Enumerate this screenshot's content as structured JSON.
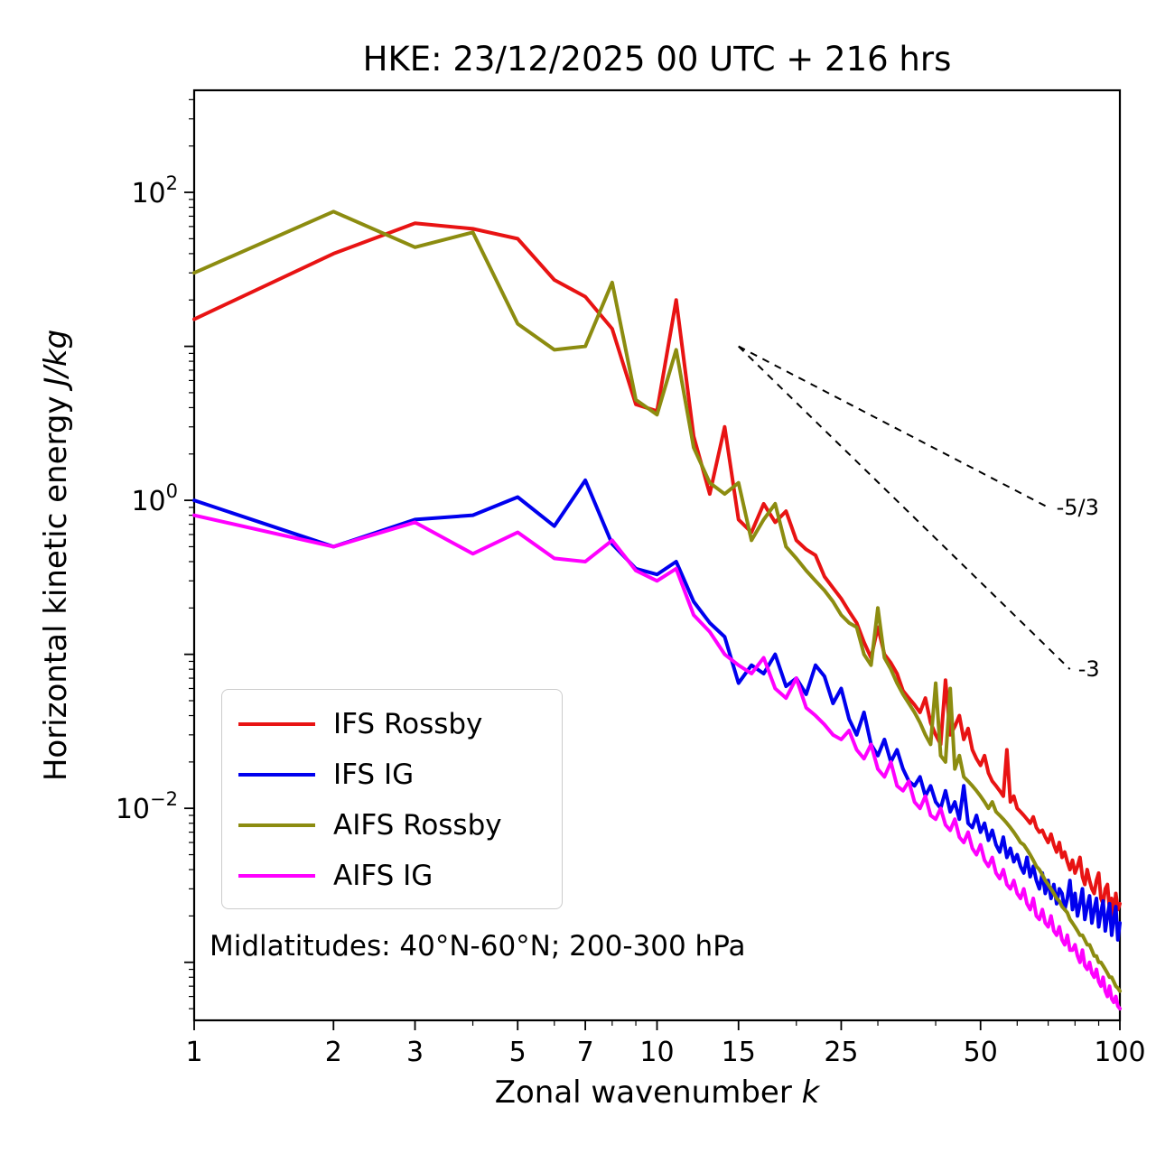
{
  "annotation": "Midlatitudes: 40°N-60°N; 200-300 hPa",
  "chart_data": {
    "type": "line",
    "title": "HKE: 23/12/2025 00 UTC + 216 hrs",
    "xlabel": {
      "text": "Zonal wavenumber",
      "var": "k"
    },
    "ylabel": {
      "text": "Horizontal kinetic energy",
      "unit": "J/kg"
    },
    "x_scale": "log",
    "y_scale": "log",
    "xlim": [
      1,
      100
    ],
    "ylim": [
      0.00042,
      460
    ],
    "grid": false,
    "legend_position": "lower left",
    "xticks": [
      1,
      2,
      3,
      5,
      7,
      10,
      15,
      25,
      50,
      100
    ],
    "xtick_labels": [
      "1",
      "2",
      "3",
      "5",
      "7",
      "10",
      "15",
      "25",
      "50",
      "100"
    ],
    "x_minor_ticks": [
      4,
      6,
      8,
      9,
      20,
      30,
      40,
      60,
      70,
      80,
      90
    ],
    "ytick_exponents_labeled": [
      2,
      0,
      -2
    ],
    "x": [
      1,
      2,
      3,
      4,
      5,
      6,
      7,
      8,
      9,
      10,
      11,
      12,
      13,
      14,
      15,
      16,
      17,
      18,
      19,
      20,
      21,
      22,
      23,
      24,
      25,
      26,
      27,
      28,
      29,
      30,
      31,
      32,
      33,
      34,
      35,
      36,
      37,
      38,
      39,
      40,
      41,
      42,
      43,
      44,
      45,
      46,
      47,
      48,
      49,
      50,
      51,
      52,
      53,
      54,
      55,
      56,
      57,
      58,
      59,
      60,
      61,
      62,
      63,
      64,
      65,
      66,
      67,
      68,
      69,
      70,
      71,
      72,
      73,
      74,
      75,
      76,
      77,
      78,
      79,
      80,
      81,
      82,
      83,
      84,
      85,
      86,
      87,
      88,
      89,
      90,
      91,
      92,
      93,
      94,
      95,
      96,
      97,
      98,
      99,
      100
    ],
    "series": [
      {
        "name": "IFS Rossby",
        "color": "#e81313",
        "values": [
          15,
          40,
          63,
          58,
          50,
          27,
          21,
          13,
          4.2,
          3.8,
          20,
          2.6,
          1.1,
          3.0,
          0.75,
          0.62,
          0.95,
          0.72,
          0.85,
          0.55,
          0.48,
          0.44,
          0.32,
          0.27,
          0.23,
          0.19,
          0.16,
          0.12,
          0.095,
          0.15,
          0.1,
          0.088,
          0.075,
          0.058,
          0.052,
          0.047,
          0.042,
          0.052,
          0.036,
          0.03,
          0.026,
          0.068,
          0.03,
          0.034,
          0.04,
          0.028,
          0.033,
          0.024,
          0.021,
          0.019,
          0.022,
          0.017,
          0.015,
          0.014,
          0.013,
          0.012,
          0.024,
          0.011,
          0.012,
          0.01,
          0.0095,
          0.009,
          0.0085,
          0.008,
          0.0088,
          0.0075,
          0.007,
          0.0072,
          0.0065,
          0.006,
          0.0068,
          0.0058,
          0.0052,
          0.006,
          0.0048,
          0.0052,
          0.0045,
          0.004,
          0.0046,
          0.0038,
          0.0042,
          0.0048,
          0.0036,
          0.0032,
          0.004,
          0.0034,
          0.003,
          0.0028,
          0.0034,
          0.0038,
          0.0026,
          0.0024,
          0.003,
          0.0032,
          0.0022,
          0.0026,
          0.002,
          0.0028,
          0.0022,
          0.0024
        ]
      },
      {
        "name": "IFS IG",
        "color": "#0000ee",
        "values": [
          1.0,
          0.5,
          0.75,
          0.8,
          1.05,
          0.68,
          1.35,
          0.52,
          0.36,
          0.33,
          0.4,
          0.22,
          0.16,
          0.13,
          0.065,
          0.085,
          0.075,
          0.1,
          0.062,
          0.07,
          0.055,
          0.085,
          0.072,
          0.048,
          0.06,
          0.038,
          0.03,
          0.042,
          0.026,
          0.022,
          0.028,
          0.02,
          0.024,
          0.018,
          0.015,
          0.014,
          0.016,
          0.012,
          0.014,
          0.011,
          0.01,
          0.013,
          0.0095,
          0.011,
          0.0085,
          0.014,
          0.008,
          0.0075,
          0.009,
          0.007,
          0.008,
          0.0062,
          0.0072,
          0.0058,
          0.0052,
          0.0065,
          0.0048,
          0.0055,
          0.0045,
          0.005,
          0.0042,
          0.0038,
          0.0048,
          0.0036,
          0.0042,
          0.0034,
          0.003,
          0.0038,
          0.0028,
          0.0034,
          0.0026,
          0.0032,
          0.0024,
          0.003,
          0.0028,
          0.0022,
          0.0026,
          0.0034,
          0.0022,
          0.0028,
          0.002,
          0.0024,
          0.003,
          0.0019,
          0.0023,
          0.0027,
          0.0018,
          0.0022,
          0.0026,
          0.0017,
          0.0021,
          0.0025,
          0.0016,
          0.002,
          0.0024,
          0.0015,
          0.0019,
          0.0023,
          0.0014,
          0.0018
        ]
      },
      {
        "name": "AIFS Rossby",
        "color": "#8c8c10",
        "values": [
          30,
          75,
          44,
          55,
          14,
          9.5,
          10,
          26,
          4.5,
          3.6,
          9.5,
          2.2,
          1.3,
          1.1,
          1.3,
          0.55,
          0.75,
          0.95,
          0.5,
          0.42,
          0.35,
          0.3,
          0.26,
          0.22,
          0.18,
          0.16,
          0.15,
          0.1,
          0.085,
          0.2,
          0.095,
          0.08,
          0.065,
          0.055,
          0.048,
          0.042,
          0.036,
          0.03,
          0.026,
          0.065,
          0.022,
          0.02,
          0.06,
          0.018,
          0.022,
          0.016,
          0.015,
          0.014,
          0.013,
          0.012,
          0.011,
          0.01,
          0.011,
          0.0095,
          0.009,
          0.0085,
          0.008,
          0.0075,
          0.007,
          0.0065,
          0.006,
          0.0058,
          0.0054,
          0.005,
          0.0046,
          0.0042,
          0.004,
          0.0037,
          0.0034,
          0.0032,
          0.003,
          0.0028,
          0.0026,
          0.0025,
          0.0023,
          0.0022,
          0.0021,
          0.0019,
          0.0018,
          0.0017,
          0.0016,
          0.0015,
          0.0015,
          0.0014,
          0.0013,
          0.0013,
          0.0012,
          0.0011,
          0.0011,
          0.001,
          0.001,
          0.00095,
          0.0009,
          0.00085,
          0.0008,
          0.0008,
          0.00075,
          0.0007,
          0.00068,
          0.00065
        ]
      },
      {
        "name": "AIFS IG",
        "color": "#ff00ff",
        "values": [
          0.8,
          0.5,
          0.72,
          0.45,
          0.62,
          0.42,
          0.4,
          0.55,
          0.35,
          0.3,
          0.36,
          0.18,
          0.14,
          0.1,
          0.085,
          0.075,
          0.095,
          0.06,
          0.052,
          0.07,
          0.045,
          0.04,
          0.035,
          0.03,
          0.028,
          0.032,
          0.024,
          0.021,
          0.026,
          0.018,
          0.016,
          0.02,
          0.014,
          0.013,
          0.015,
          0.011,
          0.01,
          0.012,
          0.009,
          0.0085,
          0.01,
          0.0078,
          0.0072,
          0.0085,
          0.0065,
          0.006,
          0.007,
          0.0055,
          0.005,
          0.0058,
          0.0046,
          0.0042,
          0.0048,
          0.0038,
          0.0035,
          0.004,
          0.0032,
          0.003,
          0.0034,
          0.0028,
          0.0026,
          0.003,
          0.0024,
          0.0022,
          0.0026,
          0.002,
          0.0019,
          0.0022,
          0.0018,
          0.0017,
          0.002,
          0.0016,
          0.0015,
          0.0017,
          0.0014,
          0.0013,
          0.0015,
          0.0012,
          0.0012,
          0.0013,
          0.0011,
          0.001,
          0.0012,
          0.00095,
          0.0009,
          0.001,
          0.00085,
          0.0008,
          0.0009,
          0.00075,
          0.0007,
          0.0008,
          0.00065,
          0.0006,
          0.0007,
          0.00058,
          0.00055,
          0.0006,
          0.00052,
          0.0005
        ]
      }
    ],
    "reference_lines": [
      {
        "label": "-5/3",
        "x": [
          15,
          70
        ],
        "y": [
          10,
          0.9
        ]
      },
      {
        "label": "-3",
        "x": [
          15,
          78
        ],
        "y": [
          10,
          0.08
        ]
      }
    ]
  }
}
